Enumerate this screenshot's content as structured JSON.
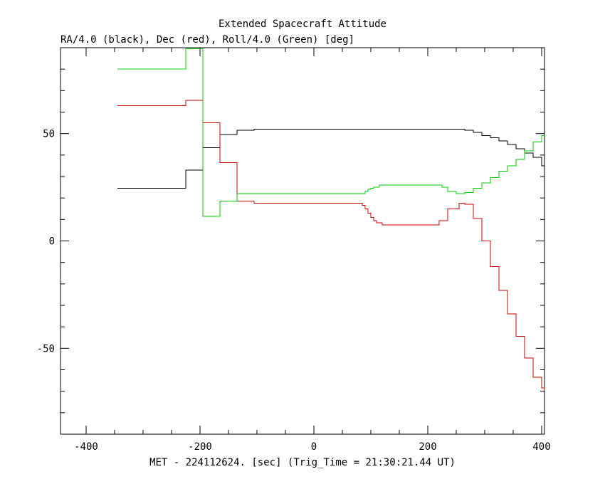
{
  "chart_data": {
    "type": "line",
    "step": true,
    "title": "Extended Spacecraft Attitude",
    "subtitle": "RA/4.0 (black), Dec (red), Roll/4.0 (Green) [deg]",
    "xlabel": "MET - 224112624. [sec] (Trig_Time = 21:30:21.44 UT)",
    "ylabel": "",
    "xlim": [
      -445,
      405
    ],
    "ylim": [
      -90,
      90
    ],
    "xticks": [
      -400,
      -200,
      0,
      200,
      400
    ],
    "yticks": [
      -50,
      0,
      50
    ],
    "grid": false,
    "legend": "none",
    "series": [
      {
        "color": "#000000",
        "x": [
          -345,
          -225,
          -195,
          -165,
          -135,
          -105,
          0,
          100,
          200,
          265,
          280,
          295,
          310,
          325,
          340,
          355,
          370,
          385,
          400,
          405
        ],
        "y": [
          24.5,
          33,
          43.5,
          49.5,
          51.5,
          52,
          52,
          52,
          52,
          51.5,
          50.5,
          49,
          48,
          46.5,
          45,
          43,
          41,
          39,
          35,
          34
        ]
      },
      {
        "color": "#cc0000",
        "x": [
          -345,
          -225,
          -195,
          -165,
          -135,
          -105,
          0,
          75,
          85,
          90,
          95,
          100,
          105,
          110,
          120,
          200,
          220,
          235,
          255,
          265,
          280,
          295,
          310,
          325,
          340,
          355,
          370,
          385,
          400,
          405
        ],
        "y": [
          63,
          65.5,
          55,
          36.5,
          18.5,
          17.5,
          17.5,
          17.5,
          16.5,
          15,
          13,
          11,
          9.5,
          8.5,
          7.5,
          7.5,
          9.5,
          15,
          17.5,
          17,
          10.5,
          0,
          -12,
          -23,
          -34,
          -44.5,
          -54.5,
          -63.5,
          -68.5,
          -69.5
        ]
      },
      {
        "color": "#00cc00",
        "x": [
          -345,
          -225,
          -195,
          -165,
          -135,
          -105,
          0,
          80,
          90,
          95,
          100,
          105,
          115,
          130,
          200,
          225,
          235,
          250,
          265,
          280,
          295,
          310,
          325,
          340,
          355,
          370,
          385,
          400,
          405
        ],
        "y": [
          80,
          89.5,
          11.5,
          18.5,
          22,
          22,
          22,
          22,
          23,
          24,
          24.5,
          25,
          26,
          26,
          26,
          25,
          23,
          22,
          22.5,
          24.5,
          27,
          29.5,
          32.5,
          35,
          38,
          42,
          46,
          49,
          49
        ]
      }
    ]
  }
}
